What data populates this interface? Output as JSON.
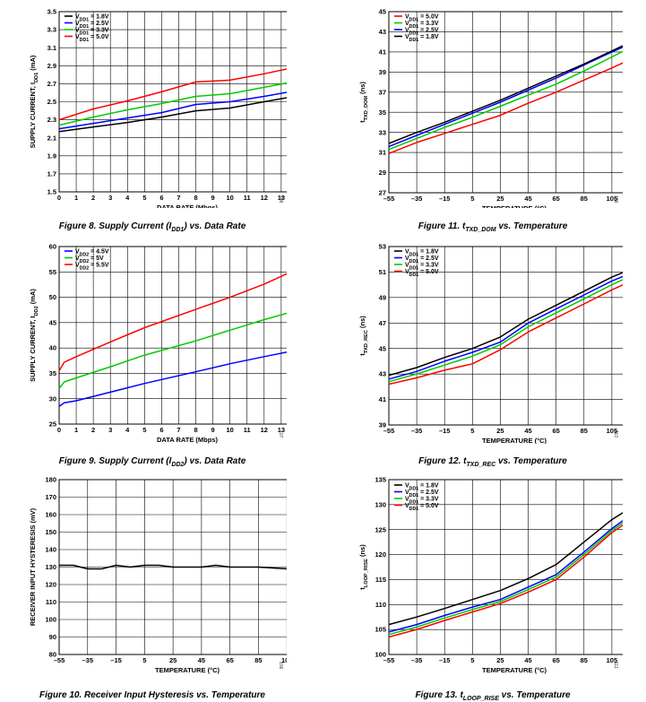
{
  "chart_data": [
    {
      "id": "fig8",
      "type": "line",
      "caption": "Figure 8. Supply Current (I",
      "caption_sub": "DD1",
      "caption_tail": ") vs. Data Rate",
      "fig_id": "108",
      "xlabel": "DATA RATE (Mbps)",
      "ylabel": "SUPPLY CURRENT, I",
      "ylabel_sub": "DD1",
      "ylabel_tail": " (mA)",
      "xlim": [
        0,
        15
      ],
      "ylim": [
        1.5,
        3.5
      ],
      "xticks": [
        "0",
        "1",
        "2",
        "3",
        "4",
        "5",
        "6",
        "7",
        "8",
        "9",
        "10",
        "11",
        "12",
        "13",
        "14",
        "15"
      ],
      "yticks": [
        "1.5",
        "1.7",
        "1.9",
        "2.1",
        "2.3",
        "2.5",
        "2.7",
        "2.9",
        "3.1",
        "3.3",
        "3.5"
      ],
      "legend_position": "top-left",
      "series": [
        {
          "name_main": "V",
          "name_sub": "DD1",
          "name_tail": " = 1.8V",
          "color": "#000000",
          "x": [
            0,
            2,
            4,
            6,
            8,
            10,
            12,
            15
          ],
          "y": [
            2.17,
            2.22,
            2.27,
            2.33,
            2.4,
            2.43,
            2.5,
            2.6
          ]
        },
        {
          "name_main": "V",
          "name_sub": "DD1",
          "name_tail": " = 2.5V",
          "color": "#0000ff",
          "x": [
            0,
            2,
            4,
            6,
            8,
            10,
            12,
            15
          ],
          "y": [
            2.2,
            2.26,
            2.32,
            2.38,
            2.47,
            2.5,
            2.56,
            2.66
          ]
        },
        {
          "name_main": "V",
          "name_sub": "DD1",
          "name_tail": " = 3.3V",
          "color": "#00cc00",
          "x": [
            0,
            2,
            4,
            6,
            8,
            10,
            12,
            15
          ],
          "y": [
            2.24,
            2.33,
            2.41,
            2.48,
            2.56,
            2.59,
            2.66,
            2.77
          ]
        },
        {
          "name_main": "V",
          "name_sub": "DD1",
          "name_tail": " = 5.0V",
          "color": "#ff0000",
          "x": [
            0,
            2,
            4,
            6,
            8,
            10,
            12,
            15
          ],
          "y": [
            2.3,
            2.42,
            2.51,
            2.61,
            2.72,
            2.74,
            2.81,
            2.93
          ]
        }
      ]
    },
    {
      "id": "fig11",
      "type": "line",
      "caption": "Figure 11. t",
      "caption_sub": "TXD_DOM",
      "caption_tail": " vs. Temperature",
      "fig_id": "109",
      "xlabel": "TEMPERATURE (°C)",
      "ylabel": "t",
      "ylabel_sub": "TXD_DOM",
      "ylabel_tail": " (ns)",
      "xlim": [
        -55,
        125
      ],
      "ylim": [
        27,
        45
      ],
      "xticks": [
        "–55",
        "–35",
        "–15",
        "5",
        "25",
        "45",
        "65",
        "85",
        "105",
        "125"
      ],
      "yticks": [
        "27",
        "29",
        "31",
        "33",
        "35",
        "37",
        "39",
        "41",
        "43",
        "45"
      ],
      "legend_position": "top-left",
      "series": [
        {
          "name_main": "V",
          "name_sub": "DD1",
          "name_tail": " = 5.0V",
          "color": "#ff0000",
          "x": [
            -55,
            -35,
            -15,
            5,
            25,
            45,
            65,
            85,
            105,
            125
          ],
          "y": [
            30.9,
            32.0,
            32.9,
            33.8,
            34.7,
            35.9,
            37.0,
            38.2,
            39.4,
            40.7
          ]
        },
        {
          "name_main": "V",
          "name_sub": "DD1",
          "name_tail": " = 3.3V",
          "color": "#00cc00",
          "x": [
            -55,
            -35,
            -15,
            5,
            25,
            45,
            65,
            85,
            105,
            125
          ],
          "y": [
            31.3,
            32.4,
            33.5,
            34.5,
            35.6,
            36.7,
            37.8,
            39.1,
            40.5,
            41.9
          ]
        },
        {
          "name_main": "V",
          "name_sub": "DD1",
          "name_tail": " = 2.5V",
          "color": "#0000ff",
          "x": [
            -55,
            -35,
            -15,
            5,
            25,
            45,
            65,
            85,
            105,
            125
          ],
          "y": [
            31.6,
            32.7,
            33.8,
            34.9,
            36.0,
            37.2,
            38.4,
            39.7,
            41.0,
            42.2
          ]
        },
        {
          "name_main": "V",
          "name_sub": "DD1",
          "name_tail": " = 1.8V",
          "color": "#000000",
          "x": [
            -55,
            -35,
            -15,
            5,
            25,
            45,
            65,
            85,
            105,
            125
          ],
          "y": [
            31.9,
            33.0,
            34.0,
            35.1,
            36.2,
            37.4,
            38.6,
            39.8,
            41.1,
            42.4
          ]
        }
      ]
    },
    {
      "id": "fig9",
      "type": "line",
      "caption": "Figure 9. Supply Current (I",
      "caption_sub": "DD2",
      "caption_tail": ") vs. Data Rate",
      "fig_id": "107",
      "xlabel": "DATA RATE (Mbps)",
      "ylabel": "SUPPLY CURRENT, I",
      "ylabel_sub": "DD2",
      "ylabel_tail": " (mA)",
      "xlim": [
        0,
        15
      ],
      "ylim": [
        25,
        60
      ],
      "xticks": [
        "0",
        "1",
        "2",
        "3",
        "4",
        "5",
        "6",
        "7",
        "8",
        "9",
        "10",
        "11",
        "12",
        "13",
        "14",
        "15"
      ],
      "yticks": [
        "25",
        "30",
        "35",
        "40",
        "45",
        "50",
        "55",
        "60"
      ],
      "legend_position": "top-left",
      "series": [
        {
          "name_main": "V",
          "name_sub": "DD2",
          "name_tail": " = 4.5V",
          "color": "#0000ff",
          "x": [
            0,
            0.3,
            1,
            3,
            5,
            8,
            10,
            12,
            15
          ],
          "y": [
            28.5,
            29.2,
            29.6,
            31.3,
            33.0,
            35.3,
            36.9,
            38.3,
            40.3
          ]
        },
        {
          "name_main": "V",
          "name_sub": "DD2",
          "name_tail": " = 5V",
          "color": "#00cc00",
          "x": [
            0,
            0.3,
            1,
            3,
            5,
            8,
            10,
            12,
            15
          ],
          "y": [
            32.0,
            33.3,
            34.1,
            36.3,
            38.6,
            41.4,
            43.5,
            45.6,
            48.4
          ]
        },
        {
          "name_main": "V",
          "name_sub": "DD2",
          "name_tail": " = 5.5V",
          "color": "#ff0000",
          "x": [
            0,
            0.3,
            1,
            3,
            5,
            8,
            10,
            12,
            15
          ],
          "y": [
            35.5,
            37.2,
            38.3,
            41.2,
            44.0,
            47.6,
            50.0,
            52.6,
            57.2
          ]
        }
      ]
    },
    {
      "id": "fig12",
      "type": "line",
      "caption": "Figure 12. t",
      "caption_sub": "TXD_REC",
      "caption_tail": " vs. Temperature",
      "fig_id": "110",
      "xlabel": "TEMPERATURE (°C)",
      "ylabel": "t",
      "ylabel_sub": "TXD_REC",
      "ylabel_tail": " (ns)",
      "xlim": [
        -55,
        125
      ],
      "ylim": [
        39,
        53
      ],
      "xticks": [
        "–55",
        "–35",
        "–15",
        "5",
        "25",
        "45",
        "65",
        "85",
        "105",
        "125"
      ],
      "yticks": [
        "39",
        "41",
        "43",
        "45",
        "47",
        "49",
        "51",
        "53"
      ],
      "legend_position": "top-left",
      "series": [
        {
          "name_main": "V",
          "name_sub": "DD1",
          "name_tail": " = 1.8V",
          "color": "#000000",
          "x": [
            -55,
            -35,
            -15,
            5,
            25,
            45,
            65,
            85,
            105,
            125
          ],
          "y": [
            42.9,
            43.5,
            44.3,
            45.0,
            45.9,
            47.3,
            48.4,
            49.5,
            50.6,
            51.5
          ]
        },
        {
          "name_main": "V",
          "name_sub": "DD1",
          "name_tail": " = 2.5V",
          "color": "#0000ff",
          "x": [
            -55,
            -35,
            -15,
            5,
            25,
            45,
            65,
            85,
            105,
            125
          ],
          "y": [
            42.6,
            43.2,
            44.0,
            44.7,
            45.5,
            47.0,
            48.1,
            49.2,
            50.3,
            51.2
          ]
        },
        {
          "name_main": "V",
          "name_sub": "DD1",
          "name_tail": " = 3.3V",
          "color": "#00cc00",
          "x": [
            -55,
            -35,
            -15,
            5,
            25,
            45,
            65,
            85,
            105,
            125
          ],
          "y": [
            42.4,
            43.0,
            43.7,
            44.4,
            45.3,
            46.7,
            47.8,
            48.9,
            50.0,
            51.0
          ]
        },
        {
          "name_main": "V",
          "name_sub": "DD1",
          "name_tail": " = 5.0V",
          "color": "#ff0000",
          "x": [
            -55,
            -35,
            -15,
            5,
            25,
            45,
            65,
            85,
            105,
            125
          ],
          "y": [
            42.2,
            42.7,
            43.3,
            43.8,
            44.9,
            46.3,
            47.4,
            48.5,
            49.6,
            50.6
          ]
        }
      ]
    },
    {
      "id": "fig10",
      "type": "line",
      "caption": "Figure 10. Receiver Input Hysteresis vs. Temperature",
      "caption_sub": "",
      "caption_tail": "",
      "fig_id": "106",
      "xlabel": "TEMPERATURE (°C)",
      "ylabel": "RECEIVER INPUT HYSTERESIS (mV)",
      "ylabel_sub": "",
      "ylabel_tail": "",
      "xlim": [
        -55,
        125
      ],
      "ylim": [
        80,
        180
      ],
      "xticks": [
        "–55",
        "–35",
        "–15",
        "5",
        "25",
        "45",
        "65",
        "85",
        "105",
        "125"
      ],
      "yticks": [
        "80",
        "90",
        "100",
        "110",
        "120",
        "130",
        "140",
        "150",
        "160",
        "170",
        "180"
      ],
      "legend_position": "none",
      "series": [
        {
          "name_main": "",
          "name_sub": "",
          "name_tail": "",
          "color": "#000000",
          "x": [
            -55,
            -45,
            -35,
            -25,
            -15,
            -5,
            5,
            15,
            25,
            35,
            45,
            55,
            65,
            75,
            85,
            95,
            105,
            115,
            125
          ],
          "y": [
            131,
            131,
            129,
            129,
            131,
            130,
            131,
            131,
            130,
            130,
            130,
            131,
            130,
            130,
            130,
            129.5,
            129,
            130,
            132
          ]
        }
      ]
    },
    {
      "id": "fig13",
      "type": "line",
      "caption": "Figure 13. t",
      "caption_sub": "LOOP_RISE",
      "caption_tail": " vs. Temperature",
      "fig_id": "111",
      "xlabel": "TEMPERATURE (°C)",
      "ylabel": "t",
      "ylabel_sub": "LOOP_RISE",
      "ylabel_tail": " (ns)",
      "xlim": [
        -55,
        125
      ],
      "ylim": [
        100,
        135
      ],
      "xticks": [
        "–55",
        "–35",
        "–15",
        "5",
        "25",
        "45",
        "65",
        "85",
        "105",
        "125"
      ],
      "yticks": [
        "100",
        "105",
        "110",
        "115",
        "120",
        "125",
        "130",
        "135"
      ],
      "legend_position": "top-left",
      "series": [
        {
          "name_main": "V",
          "name_sub": "DD1",
          "name_tail": " = 1.8V",
          "color": "#000000",
          "x": [
            -55,
            -35,
            -15,
            5,
            25,
            45,
            65,
            85,
            105,
            125
          ],
          "y": [
            106.0,
            107.5,
            109.2,
            111.0,
            112.8,
            115.2,
            118.0,
            122.5,
            127.0,
            130.5
          ]
        },
        {
          "name_main": "V",
          "name_sub": "DD1",
          "name_tail": " = 2.5V",
          "color": "#0000ff",
          "x": [
            -55,
            -35,
            -15,
            5,
            25,
            45,
            65,
            85,
            105,
            125
          ],
          "y": [
            104.5,
            106.0,
            107.8,
            109.5,
            111.0,
            113.5,
            116.0,
            120.5,
            125.2,
            129.2
          ]
        },
        {
          "name_main": "V",
          "name_sub": "DD1",
          "name_tail": " = 3.3V",
          "color": "#00cc00",
          "x": [
            -55,
            -35,
            -15,
            5,
            25,
            45,
            65,
            85,
            105,
            125
          ],
          "y": [
            104.0,
            105.5,
            107.3,
            109.0,
            110.6,
            113.0,
            115.5,
            120.0,
            124.8,
            128.7
          ]
        },
        {
          "name_main": "V",
          "name_sub": "DD1",
          "name_tail": " = 5.0V",
          "color": "#ff0000",
          "x": [
            -55,
            -35,
            -15,
            5,
            25,
            45,
            65,
            85,
            105,
            125
          ],
          "y": [
            103.5,
            105.0,
            106.8,
            108.5,
            110.2,
            112.5,
            115.0,
            119.5,
            124.4,
            128.2
          ]
        }
      ]
    }
  ]
}
